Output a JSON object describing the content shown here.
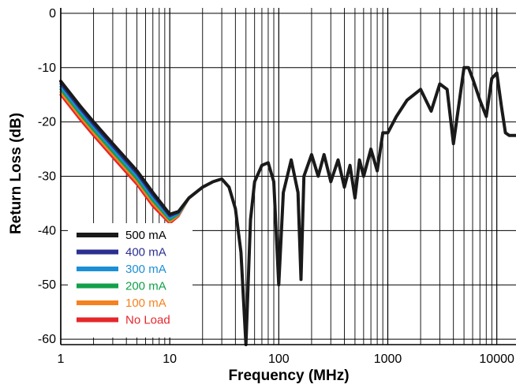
{
  "chart_data": {
    "type": "line",
    "xlabel": "Frequency (MHz)",
    "ylabel": "Return Loss (dB)",
    "x_scale": "log",
    "xlim": [
      1,
      15000
    ],
    "ylim": [
      -61,
      1
    ],
    "x_ticks": [
      1,
      10,
      100,
      1000,
      10000
    ],
    "x_tick_labels": [
      "1",
      "10",
      "100",
      "1000",
      "10000"
    ],
    "y_ticks": [
      0,
      -10,
      -20,
      -30,
      -40,
      -50,
      -60
    ],
    "y_tick_labels": [
      "0",
      "-10",
      "-20",
      "-30",
      "-40",
      "-50",
      "-60"
    ],
    "grid": true,
    "legend_position": "bottom-left",
    "series": [
      {
        "name": "500 mA",
        "color": "#1a1a1a",
        "offset_low": 0.0
      },
      {
        "name": "400 mA",
        "color": "#2b2f8f",
        "offset_low": -0.5
      },
      {
        "name": "300 mA",
        "color": "#1b8fd6",
        "offset_low": -1.0
      },
      {
        "name": "200 mA",
        "color": "#12a04a",
        "offset_low": -1.5
      },
      {
        "name": "100 mA",
        "color": "#f58220",
        "offset_low": -2.0
      },
      {
        "name": "No Load",
        "color": "#e5262b",
        "offset_low": -2.5
      }
    ],
    "base_curve": {
      "x": [
        1,
        1.5,
        2,
        3,
        5,
        7,
        10,
        12,
        15,
        20,
        25,
        30,
        35,
        40,
        45,
        50,
        55,
        60,
        70,
        80,
        90,
        100,
        110,
        130,
        150,
        160,
        170,
        200,
        230,
        260,
        300,
        350,
        400,
        450,
        500,
        550,
        600,
        700,
        800,
        900,
        1000,
        1200,
        1500,
        2000,
        2500,
        3000,
        3500,
        4000,
        5000,
        5500,
        6000,
        7000,
        8000,
        9000,
        10000,
        11000,
        12000,
        13000,
        15000
      ],
      "y": [
        -12.5,
        -17,
        -20,
        -24,
        -29,
        -33,
        -37,
        -36.5,
        -34,
        -32,
        -31,
        -30.5,
        -32,
        -36,
        -44,
        -61,
        -38,
        -31,
        -28,
        -27.5,
        -31,
        -50,
        -33,
        -27,
        -33,
        -49,
        -30,
        -26,
        -30,
        -26,
        -31,
        -27,
        -32,
        -28,
        -34,
        -27,
        -30,
        -25,
        -29,
        -22,
        -22,
        -19,
        -16,
        -14,
        -18,
        -13,
        -14,
        -24,
        -10,
        -10,
        -12,
        -16,
        -19,
        -12,
        -11,
        -17,
        -22,
        -22.5,
        -22.5
      ]
    }
  }
}
